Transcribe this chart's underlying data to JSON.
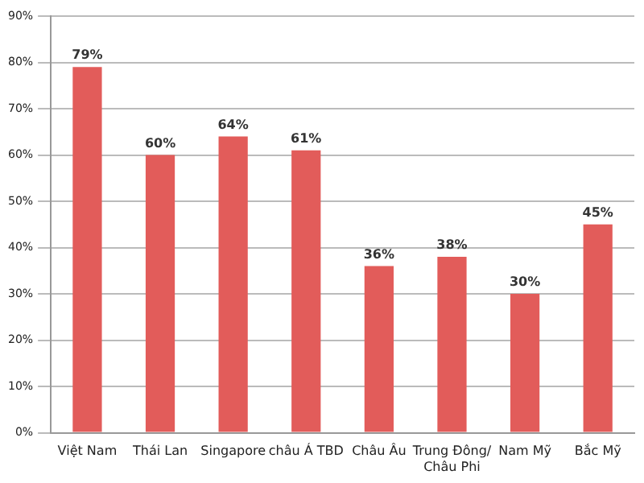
{
  "chart_data": {
    "type": "bar",
    "categories": [
      "Việt Nam",
      "Thái Lan",
      "Singapore",
      "châu Á TBD",
      "Châu Âu",
      "Trung Đông/\nChâu Phi",
      "Nam Mỹ",
      "Bắc Mỹ"
    ],
    "values": [
      79,
      60,
      64,
      61,
      36,
      38,
      30,
      45
    ],
    "value_labels": [
      "79%",
      "60%",
      "64%",
      "61%",
      "36%",
      "38%",
      "30%",
      "45%"
    ],
    "color": "#e25c5a",
    "ylim": [
      0,
      90
    ],
    "yticks": [
      {
        "value": 0,
        "label": "0%"
      },
      {
        "value": 10,
        "label": "10%"
      },
      {
        "value": 20,
        "label": "20%"
      },
      {
        "value": 30,
        "label": "30%"
      },
      {
        "value": 40,
        "label": "40%"
      },
      {
        "value": 50,
        "label": "50%"
      },
      {
        "value": 60,
        "label": "60%"
      },
      {
        "value": 70,
        "label": "70%"
      },
      {
        "value": 80,
        "label": "80%"
      },
      {
        "value": 90,
        "label": "90%"
      }
    ],
    "grid": "y"
  }
}
